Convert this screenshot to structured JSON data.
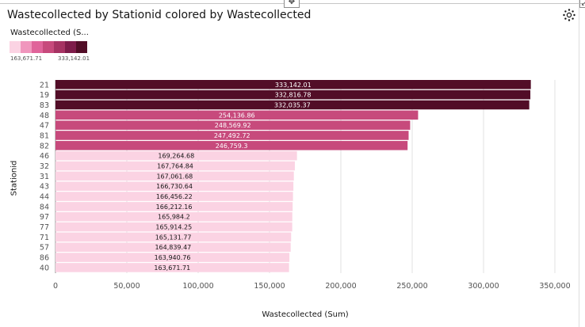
{
  "title": "Wastecollected by Stationid colored by Wastecollected",
  "legend": {
    "title": "Wastecollected (S...",
    "min_label": "163,671.71",
    "max_label": "333,142.01",
    "swatch_colors": [
      "#fbd3e3",
      "#f096bd",
      "#e0649a",
      "#c74a7c",
      "#a63363",
      "#7e1c4a",
      "#520d27"
    ]
  },
  "icons": {
    "move": "move-handle-icon",
    "settings": "settings-icon",
    "corner": "minimize-icon"
  },
  "chart_data": {
    "type": "bar",
    "orientation": "horizontal",
    "title": "Wastecollected by Stationid colored by Wastecollected",
    "xlabel": "Wastecollected (Sum)",
    "ylabel": "Stationid",
    "xlim": [
      0,
      350000
    ],
    "xticks": [
      0,
      50000,
      100000,
      150000,
      200000,
      250000,
      300000,
      350000
    ],
    "xtick_labels": [
      "0",
      "50,000",
      "100,000",
      "150,000",
      "200,000",
      "250,000",
      "300,000",
      "350,000"
    ],
    "grid": "vertical",
    "categories": [
      "21",
      "19",
      "83",
      "48",
      "47",
      "81",
      "82",
      "46",
      "32",
      "31",
      "43",
      "44",
      "84",
      "97",
      "77",
      "71",
      "57",
      "86",
      "40"
    ],
    "values": [
      333142.01,
      332816.78,
      332035.37,
      254136.86,
      248569.92,
      247492.72,
      246759.3,
      169264.68,
      167764.84,
      167061.68,
      166730.64,
      166456.22,
      166212.16,
      165984.2,
      165914.25,
      165131.77,
      164839.47,
      163940.76,
      163671.71
    ],
    "value_labels": [
      "333,142.01",
      "332,816.78",
      "332,035.37",
      "254,136.86",
      "248,569.92",
      "247,492.72",
      "246,759.3",
      "169,264.68",
      "167,764.84",
      "167,061.68",
      "166,730.64",
      "166,456.22",
      "166,212.16",
      "165,984.2",
      "165,914.25",
      "165,131.77",
      "164,839.47",
      "163,940.76",
      "163,671.71"
    ],
    "color_scale": [
      "#fbd3e3",
      "#f096bd",
      "#e0649a",
      "#c74a7c",
      "#a63363",
      "#7e1c4a",
      "#520d27"
    ]
  }
}
